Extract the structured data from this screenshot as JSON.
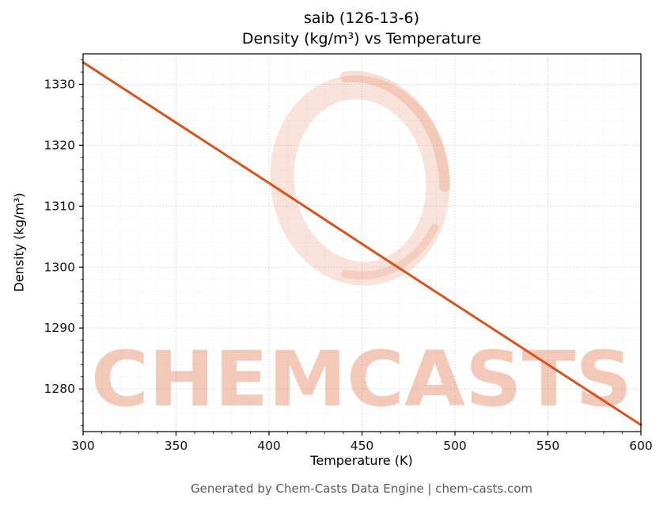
{
  "title_line1": "saib (126-13-6)",
  "title_line2": "Density (kg/m³) vs Temperature",
  "footer": "Generated by Chem-Casts Data Engine | chem-casts.com",
  "watermark": {
    "text": "CHEMCASTS",
    "color": "#d9531e",
    "logo": "brushstroke-ring-logo"
  },
  "chart_data": {
    "type": "line",
    "title": "saib (126-13-6) — Density (kg/m³) vs Temperature",
    "xlabel": "Temperature (K)",
    "ylabel": "Density (kg/m³)",
    "xlim": [
      300,
      600
    ],
    "ylim": [
      1273,
      1335
    ],
    "x_ticks": [
      300,
      350,
      400,
      450,
      500,
      550,
      600
    ],
    "y_ticks": [
      1280,
      1290,
      1300,
      1310,
      1320,
      1330
    ],
    "x_minor_step": 10,
    "y_minor_step": 2,
    "grid": "major and minor, dotted, on",
    "legend": "none",
    "line_color": "#d9531e",
    "series": [
      {
        "name": "Density",
        "x": [
          300,
          350,
          400,
          450,
          500,
          550,
          600
        ],
        "y": [
          1333.6,
          1323.7,
          1313.8,
          1303.8,
          1293.9,
          1284.0,
          1274.1
        ]
      }
    ]
  }
}
